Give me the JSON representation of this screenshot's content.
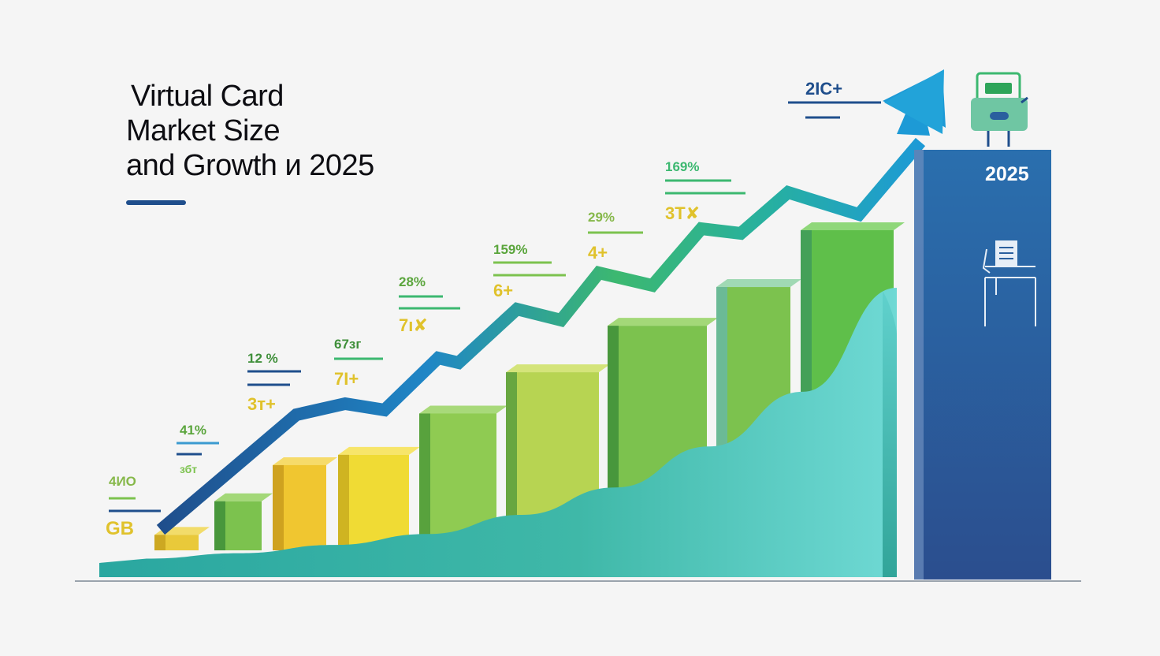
{
  "title": {
    "line1": "Virtual Card",
    "line2": "Market Size",
    "line3": "and Growth и 2025"
  },
  "colors": {
    "title_text": "#0d0d12",
    "accent_navy": "#1f4e8c",
    "bar_yellow": "#e8c92e",
    "bar_green": "#6cb84a",
    "area_teal": "#3fb8a8",
    "arrow_blue": "#1d9ad6",
    "arrow_green": "#3cb870",
    "column_blue": "#2a5f9e"
  },
  "chart_data": {
    "type": "bar",
    "title": "Virtual Card Market Size and Growth и 2025",
    "xlabel": "",
    "ylabel": "",
    "categories": [
      "",
      "",
      "",
      "",
      "",
      "",
      "",
      "",
      ""
    ],
    "values": [
      6,
      19,
      33,
      37,
      53,
      69,
      87,
      102,
      124
    ],
    "ylim": [
      0,
      140
    ],
    "grid": false,
    "trend_line": [
      12,
      40,
      66,
      64,
      88,
      84,
      106,
      118,
      145
    ],
    "growth_curve": [
      1,
      3,
      6,
      10,
      17,
      27,
      42,
      62,
      100
    ],
    "annotations": [
      {
        "pct": "4ИO",
        "value": "GB"
      },
      {
        "pct": "41%",
        "value": "збт"
      },
      {
        "pct": "12 %",
        "value": "3т+"
      },
      {
        "pct": "67зг",
        "value": "7I+"
      },
      {
        "pct": "28%",
        "value": "7ı✘"
      },
      {
        "pct": "159%",
        "value": "6+"
      },
      {
        "pct": "29%",
        "value": "4+"
      },
      {
        "pct": "169%",
        "value": "3T✘"
      }
    ],
    "arrow_label": "2IC+",
    "highlight_column": {
      "label": "2025"
    }
  }
}
